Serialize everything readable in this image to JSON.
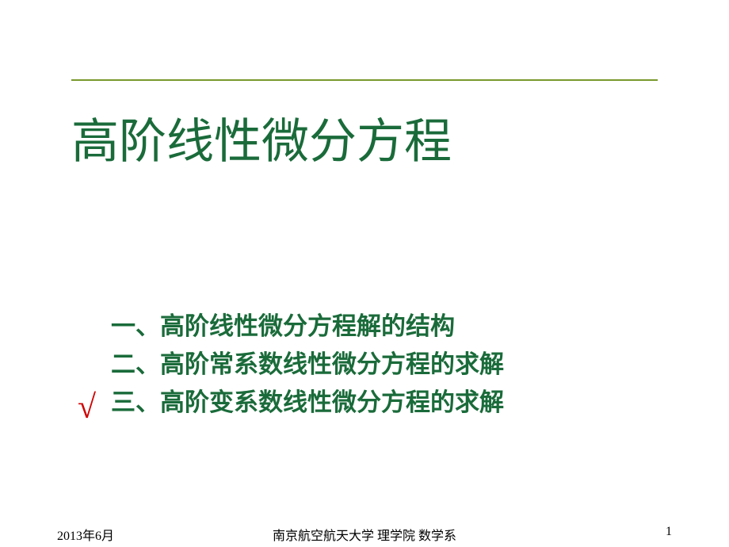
{
  "title": {
    "text": "高阶线性微分方程",
    "color": "#1a6b3a",
    "rule_color": "#7a9a2e"
  },
  "outline": {
    "color": "#1a6b3a",
    "items": [
      {
        "label": "一、高阶线性微分方程解的结构",
        "checked": false
      },
      {
        "label": "二、高阶常系数线性微分方程的求解",
        "checked": false
      },
      {
        "label": "三、高阶变系数线性微分方程的求解",
        "checked": true
      }
    ],
    "check_color": "#d00000"
  },
  "footer": {
    "date": "2013年6月",
    "org": "南京航空航天大学 理学院 数学系",
    "page": "1"
  }
}
